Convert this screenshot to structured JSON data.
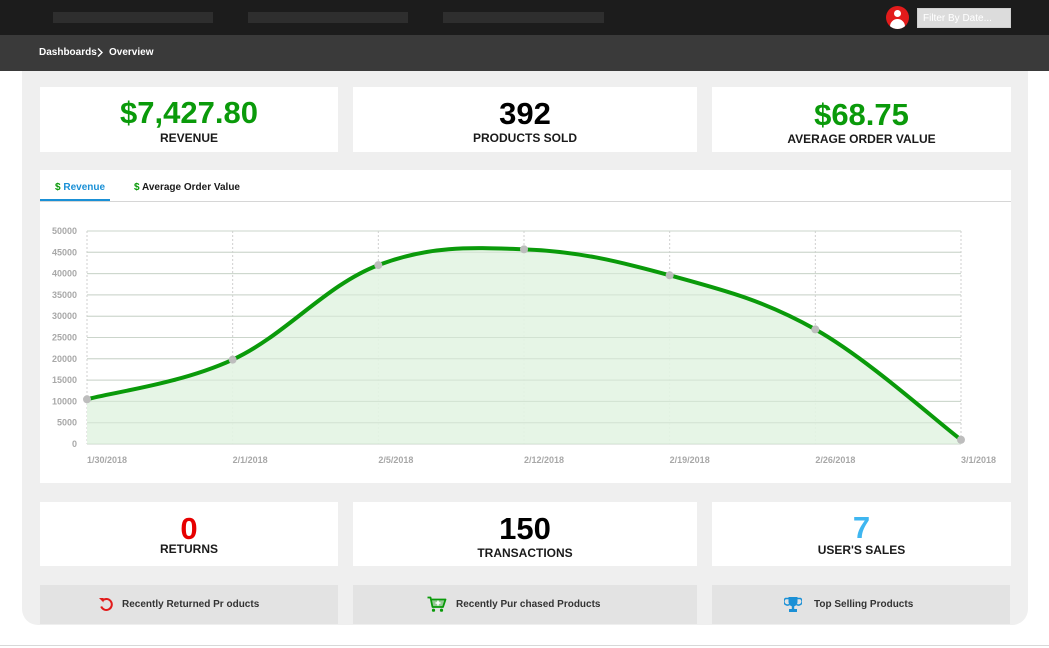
{
  "header": {
    "filter_placeholder": "Filter By Date..."
  },
  "breadcrumb": {
    "items": [
      "Dashboards",
      "Overview"
    ]
  },
  "stats_top": [
    {
      "value": "$7,427.80",
      "label": "REVENUE",
      "color": "#0a9a0a"
    },
    {
      "value": "392",
      "label": "PRODUCTS SOLD",
      "color": "#000000"
    },
    {
      "value": "$68.75",
      "label": "AVERAGE ORDER VALUE",
      "color": "#0a9a0a"
    }
  ],
  "tabs": [
    {
      "icon": "$",
      "label": "Revenue",
      "active": true
    },
    {
      "icon": "$",
      "label": "Average Order Value",
      "active": false
    }
  ],
  "chart_data": {
    "type": "area",
    "x": [
      "1/30/2018",
      "2/1/2018",
      "2/5/2018",
      "2/12/2018",
      "2/19/2018",
      "2/26/2018",
      "3/1/2018"
    ],
    "values": [
      10500,
      19800,
      42000,
      45700,
      39600,
      26900,
      1000
    ],
    "y_ticks": [
      "50000",
      "45000",
      "40000",
      "35000",
      "30000",
      "25000",
      "20000",
      "15000",
      "10000",
      "5000",
      "0"
    ],
    "ylim": [
      0,
      50000
    ],
    "grid": true,
    "line_color": "#0a9a0a",
    "fill_color": "#e3f4e3",
    "point_color": "#bdbdbd"
  },
  "stats_bottom": [
    {
      "value": "0",
      "label": "RETURNS",
      "color": "#e60000"
    },
    {
      "value": "150",
      "label": "TRANSACTIONS",
      "color": "#000000"
    },
    {
      "value": "7",
      "label": "USER'S SALES",
      "color": "#3fb6f0"
    }
  ],
  "footer_buttons": [
    {
      "label": "Recently Returned Pr oducts",
      "icon": "undo-icon",
      "icon_color": "#e21b1b"
    },
    {
      "label": "Recently Pur chased Products",
      "icon": "cart-plus-icon",
      "icon_color": "#0a9a0a"
    },
    {
      "label": "Top Selling Products",
      "icon": "trophy-icon",
      "icon_color": "#1a90d6"
    }
  ]
}
